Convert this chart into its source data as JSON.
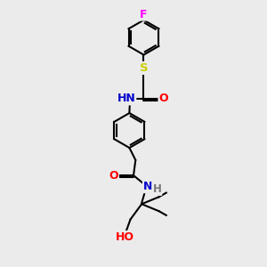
{
  "bg_color": "#ebebeb",
  "atom_colors": {
    "C": "#000000",
    "N": "#0000cc",
    "O": "#ff0000",
    "S": "#cccc00",
    "F": "#ff00ff",
    "H": "#777777"
  },
  "bond_color": "#000000",
  "bond_width": 1.5,
  "figsize": [
    3.0,
    3.0
  ],
  "dpi": 100,
  "xlim": [
    0,
    10
  ],
  "ylim": [
    0,
    13
  ]
}
